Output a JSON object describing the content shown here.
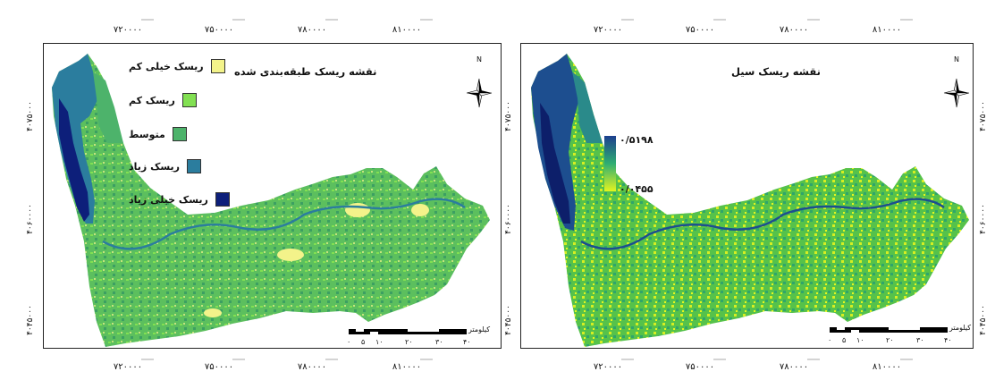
{
  "left_map": {
    "title": "نقشه ریسک طبقه‌بندی شده",
    "legend": [
      {
        "label": "ریسک خیلی کم",
        "color": "#f3f38a"
      },
      {
        "label": "ریسک کم",
        "color": "#82e052"
      },
      {
        "label": "متوسط",
        "color": "#4db36b"
      },
      {
        "label": "ریسک زیاد",
        "color": "#2b7d9e"
      },
      {
        "label": "ریسک خیلی زیاد",
        "color": "#0d1f7a"
      }
    ],
    "x_ticks": [
      "۷۲۰۰۰۰",
      "۷۵۰۰۰۰",
      "۷۸۰۰۰۰",
      "۸۱۰۰۰۰"
    ],
    "y_ticks": [
      "۴۰۷۵۰۰۰",
      "۴۰۶۰۰۰۰",
      "۴۰۴۵۰۰۰"
    ],
    "scale_labels": [
      "۰",
      "۵",
      "۱۰",
      "۲۰",
      "۳۰",
      "۴۰"
    ],
    "scale_unit": "کیلومتر",
    "north": "N"
  },
  "right_map": {
    "title": "نقشه ریسک سیل",
    "ramp": {
      "max": "۰/۵۱۹۸",
      "min": "۰/۰۴۵۵",
      "color_high": "#1d3f8f",
      "color_mid": "#2fae72",
      "color_low": "#e4f51f"
    },
    "x_ticks": [
      "۷۲۰۰۰۰",
      "۷۵۰۰۰۰",
      "۷۸۰۰۰۰",
      "۸۱۰۰۰۰"
    ],
    "y_ticks": [
      "۴۰۷۵۰۰۰",
      "۴۰۶۰۰۰۰",
      "۴۰۴۵۰۰۰"
    ],
    "scale_labels": [
      "۰",
      "۵",
      "۱۰",
      "۲۰",
      "۳۰",
      "۴۰"
    ],
    "scale_unit": "کیلومتر",
    "north": "N"
  }
}
